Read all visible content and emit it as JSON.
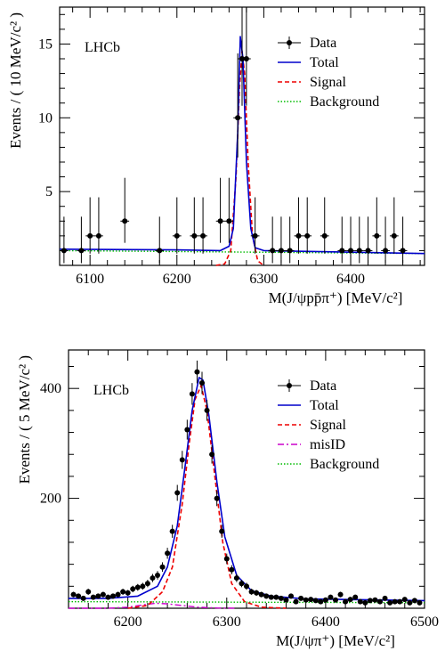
{
  "chart_data": [
    {
      "type": "scatter",
      "xlabel": "M(J/ψpp̄π⁺) [MeV/c²]",
      "ylabel": "Events / ( 10 MeV/c² )",
      "xlim": [
        6065,
        6485
      ],
      "ylim": [
        0,
        17.5
      ],
      "xticks": [
        6100,
        6200,
        6300,
        6400
      ],
      "yticks": [
        5,
        10,
        15
      ],
      "annotation": "LHCb",
      "legend": [
        "Data",
        "Total",
        "Signal",
        "Background"
      ],
      "legend_position": "top-right",
      "colors": {
        "data": "#000000",
        "total": "#0000cc",
        "signal": "#ee0000",
        "background": "#00bb00"
      },
      "series": [
        {
          "name": "Data",
          "x": [
            6070,
            6090,
            6100,
            6110,
            6140,
            6180,
            6200,
            6220,
            6230,
            6250,
            6260,
            6270,
            6275,
            6280,
            6290,
            6310,
            6320,
            6330,
            6340,
            6350,
            6370,
            6390,
            6400,
            6410,
            6420,
            6430,
            6440,
            6450,
            6460
          ],
          "y": [
            1,
            1,
            2,
            2,
            3,
            1,
            2,
            2,
            2,
            3,
            3,
            10,
            14,
            14,
            2,
            1,
            1,
            1,
            2,
            2,
            2,
            1,
            1,
            1,
            1,
            2,
            1,
            2,
            1
          ]
        },
        {
          "name": "Total",
          "x": [
            6065,
            6200,
            6250,
            6260,
            6265,
            6270,
            6273,
            6276,
            6280,
            6285,
            6290,
            6300,
            6485
          ],
          "y": [
            1.1,
            1.05,
            1.0,
            1.3,
            2.5,
            9,
            15.5,
            14,
            7,
            2.5,
            1.2,
            1.0,
            0.8
          ]
        },
        {
          "name": "Signal",
          "x": [
            6245,
            6255,
            6262,
            6268,
            6272,
            6275,
            6278,
            6282,
            6287,
            6293,
            6300
          ],
          "y": [
            0,
            0.1,
            1,
            6,
            12,
            14.5,
            13,
            7,
            2,
            0.3,
            0
          ]
        },
        {
          "name": "Background",
          "x": [
            6065,
            6485
          ],
          "y": [
            1.0,
            0.8
          ]
        }
      ]
    },
    {
      "type": "scatter",
      "xlabel": "M(J/ψπ⁺) [MeV/c²]",
      "ylabel": "Events / ( 5 MeV/c² )",
      "xlim": [
        6140,
        6500
      ],
      "ylim": [
        0,
        470
      ],
      "xticks": [
        6200,
        6300,
        6400,
        6500
      ],
      "yticks": [
        200,
        400
      ],
      "annotation": "LHCb",
      "legend": [
        "Data",
        "Total",
        "Signal",
        "misID",
        "Background"
      ],
      "legend_position": "top-right",
      "colors": {
        "data": "#000000",
        "total": "#0000cc",
        "signal": "#ee0000",
        "misid": "#cc00cc",
        "background": "#00bb00"
      },
      "series": [
        {
          "name": "Data",
          "x": [
            6145,
            6150,
            6155,
            6160,
            6165,
            6170,
            6175,
            6180,
            6185,
            6190,
            6195,
            6200,
            6205,
            6210,
            6215,
            6220,
            6225,
            6230,
            6235,
            6240,
            6245,
            6250,
            6255,
            6260,
            6265,
            6270,
            6275,
            6280,
            6285,
            6290,
            6295,
            6300,
            6305,
            6310,
            6315,
            6320,
            6325,
            6330,
            6335,
            6340,
            6345,
            6350,
            6355,
            6360,
            6365,
            6370,
            6375,
            6380,
            6385,
            6390,
            6395,
            6400,
            6405,
            6410,
            6415,
            6420,
            6425,
            6430,
            6435,
            6440,
            6445,
            6450,
            6455,
            6460,
            6465,
            6470,
            6475,
            6480,
            6485,
            6490,
            6495
          ],
          "y": [
            25,
            22,
            18,
            30,
            20,
            22,
            25,
            20,
            22,
            25,
            30,
            28,
            35,
            38,
            40,
            45,
            55,
            60,
            75,
            100,
            140,
            210,
            270,
            325,
            390,
            430,
            410,
            360,
            280,
            200,
            140,
            90,
            70,
            55,
            45,
            40,
            30,
            28,
            25,
            22,
            20,
            20,
            18,
            15,
            22,
            12,
            18,
            15,
            16,
            14,
            12,
            15,
            20,
            15,
            25,
            12,
            16,
            20,
            12,
            10,
            14,
            15,
            12,
            18,
            10,
            12,
            12,
            16,
            10,
            14,
            10
          ]
        },
        {
          "name": "Total",
          "x": [
            6140,
            6180,
            6210,
            6230,
            6240,
            6250,
            6258,
            6265,
            6272,
            6276,
            6282,
            6290,
            6298,
            6310,
            6325,
            6345,
            6380,
            6500
          ],
          "y": [
            18,
            18,
            22,
            40,
            75,
            150,
            260,
            360,
            420,
            415,
            350,
            230,
            130,
            60,
            32,
            22,
            17,
            14
          ]
        },
        {
          "name": "Signal",
          "x": [
            6200,
            6220,
            6235,
            6245,
            6255,
            6262,
            6268,
            6274,
            6280,
            6288,
            6296,
            6305,
            6318,
            6335,
            6360
          ],
          "y": [
            0,
            5,
            30,
            75,
            190,
            300,
            380,
            405,
            360,
            240,
            120,
            45,
            12,
            2,
            0
          ]
        },
        {
          "name": "misID",
          "x": [
            6140,
            6180,
            6200,
            6215,
            6228,
            6240,
            6255,
            6270,
            6290,
            6310
          ],
          "y": [
            0,
            0,
            2,
            6,
            9,
            8,
            5,
            2,
            0.5,
            0
          ]
        },
        {
          "name": "Background",
          "x": [
            6140,
            6500
          ],
          "y": [
            12,
            10
          ]
        }
      ]
    }
  ]
}
